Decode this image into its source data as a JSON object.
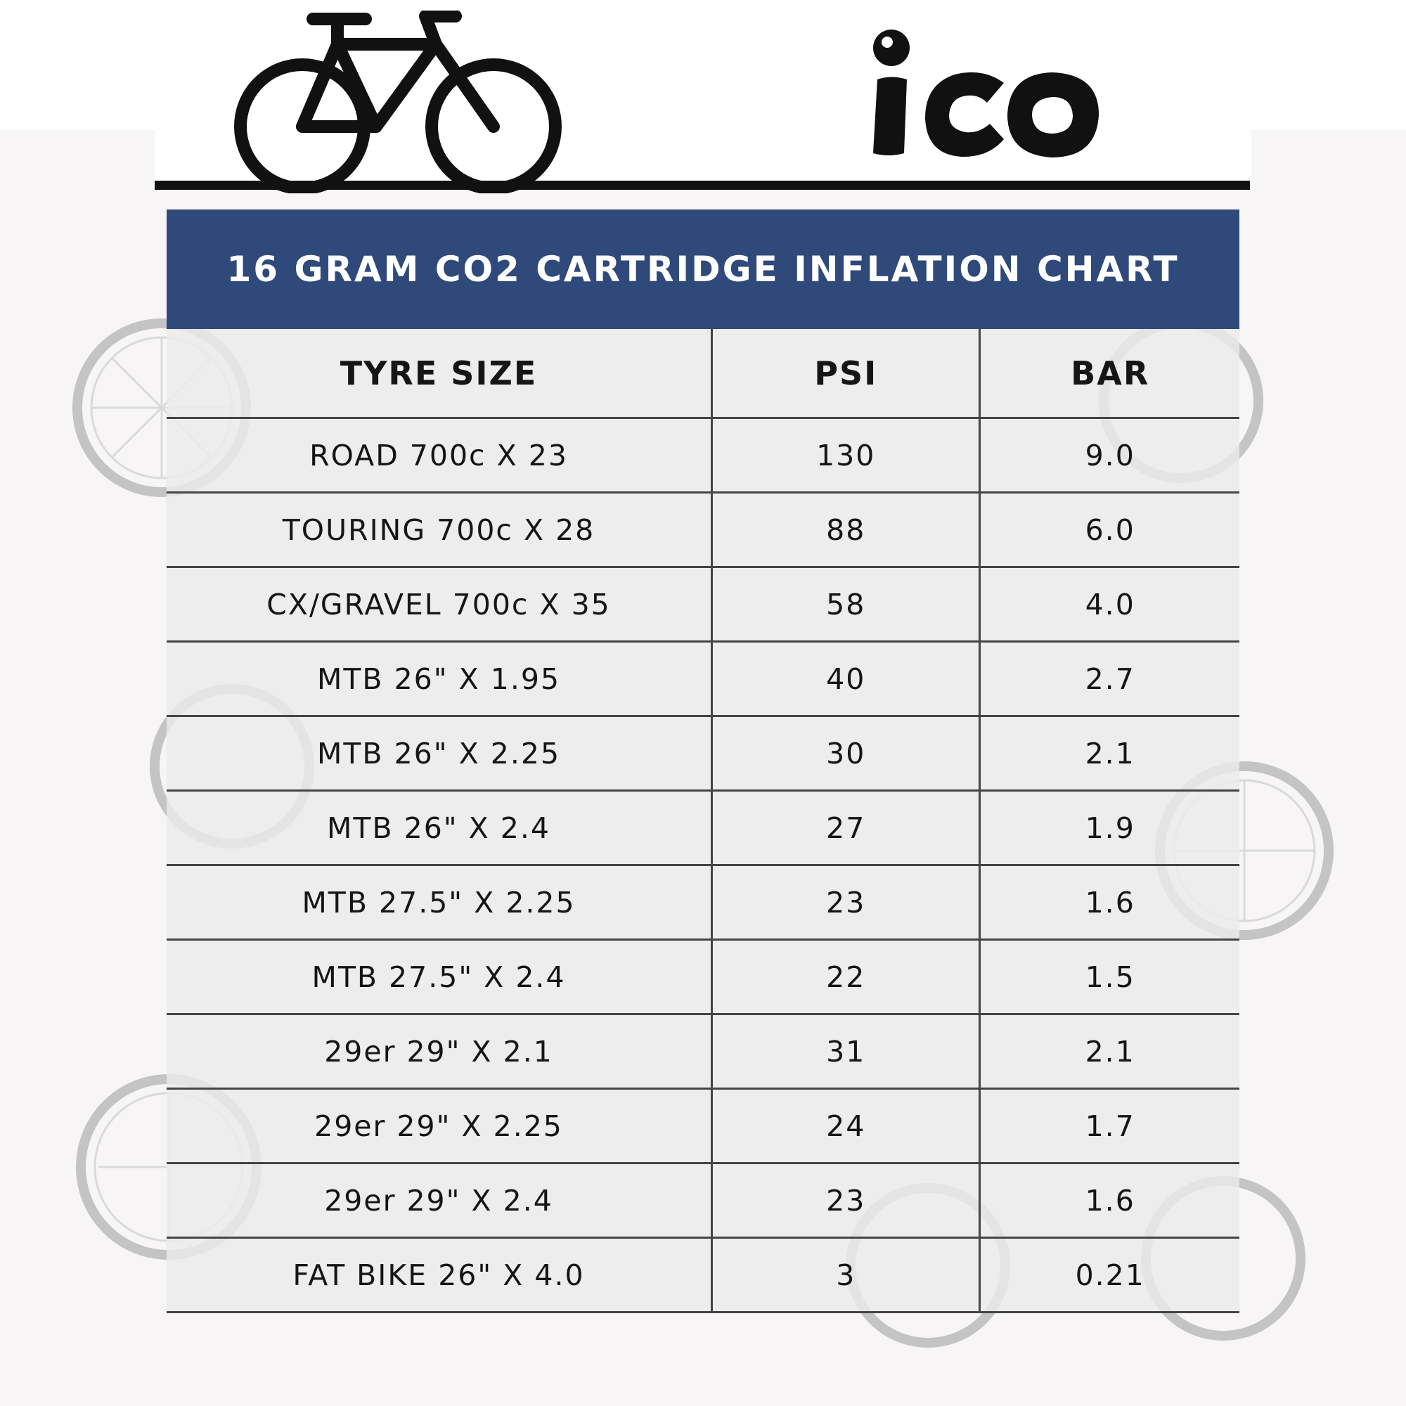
{
  "brand": {
    "name": "ico"
  },
  "chart": {
    "title": "16 GRAM CO2 CARTRIDGE INFLATION CHART"
  },
  "table": {
    "headers": [
      "TYRE SIZE",
      "PSI",
      "BAR"
    ],
    "rows": [
      {
        "size": "ROAD 700c X 23",
        "psi": "130",
        "bar": "9.0"
      },
      {
        "size": "TOURING 700c X 28",
        "psi": "88",
        "bar": "6.0"
      },
      {
        "size": "CX/GRAVEL 700c X 35",
        "psi": "58",
        "bar": "4.0"
      },
      {
        "size": "MTB 26\" X 1.95",
        "psi": "40",
        "bar": "2.7"
      },
      {
        "size": "MTB 26\" X 2.25",
        "psi": "30",
        "bar": "2.1"
      },
      {
        "size": "MTB 26\" X 2.4",
        "psi": "27",
        "bar": "1.9"
      },
      {
        "size": "MTB 27.5\" X 2.25",
        "psi": "23",
        "bar": "1.6"
      },
      {
        "size": "MTB 27.5\" X 2.4",
        "psi": "22",
        "bar": "1.5"
      },
      {
        "size": "29er 29\" X 2.1",
        "psi": "31",
        "bar": "2.1"
      },
      {
        "size": "29er 29\" X 2.25",
        "psi": "24",
        "bar": "1.7"
      },
      {
        "size": "29er 29\" X 2.4",
        "psi": "23",
        "bar": "1.6"
      },
      {
        "size": "FAT BIKE 26\" X 4.0",
        "psi": "3",
        "bar": "0.21"
      }
    ]
  },
  "icons": [
    "bicycle-icon",
    "ico-logo"
  ],
  "colors": {
    "title_bar": "#2f4a7a",
    "rule_line": "#111111",
    "table_bg": "#ececec",
    "watermark": "#bdbdbd"
  }
}
